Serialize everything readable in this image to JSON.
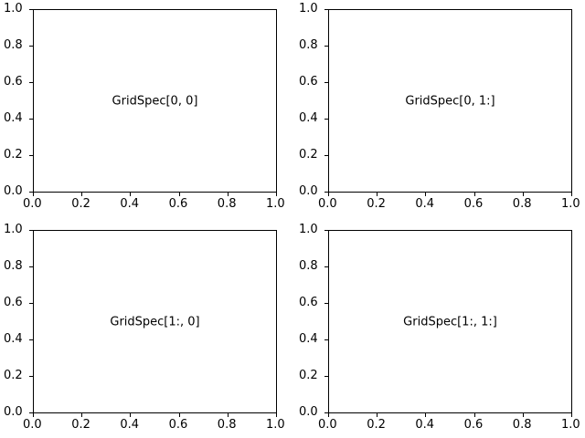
{
  "chart_data": [
    {
      "type": "empty",
      "title": "",
      "annotation": "GridSpec[0, 0]",
      "xlim": [
        0,
        1
      ],
      "ylim": [
        0,
        1
      ],
      "xticks": [
        "0.0",
        "0.2",
        "0.4",
        "0.6",
        "0.8",
        "1.0"
      ],
      "yticks": [
        "0.0",
        "0.2",
        "0.4",
        "0.6",
        "0.8",
        "1.0"
      ],
      "grid": false
    },
    {
      "type": "empty",
      "title": "",
      "annotation": "GridSpec[0, 1:]",
      "xlim": [
        0,
        1
      ],
      "ylim": [
        0,
        1
      ],
      "xticks": [
        "0.0",
        "0.2",
        "0.4",
        "0.6",
        "0.8",
        "1.0"
      ],
      "yticks": [
        "0.0",
        "0.2",
        "0.4",
        "0.6",
        "0.8",
        "1.0"
      ],
      "grid": false
    },
    {
      "type": "empty",
      "title": "",
      "annotation": "GridSpec[1:, 0]",
      "xlim": [
        0,
        1
      ],
      "ylim": [
        0,
        1
      ],
      "xticks": [
        "0.0",
        "0.2",
        "0.4",
        "0.6",
        "0.8",
        "1.0"
      ],
      "yticks": [
        "0.0",
        "0.2",
        "0.4",
        "0.6",
        "0.8",
        "1.0"
      ],
      "grid": false
    },
    {
      "type": "empty",
      "title": "",
      "annotation": "GridSpec[1:, 1:]",
      "xlim": [
        0,
        1
      ],
      "ylim": [
        0,
        1
      ],
      "xticks": [
        "0.0",
        "0.2",
        "0.4",
        "0.6",
        "0.8",
        "1.0"
      ],
      "yticks": [
        "0.0",
        "0.2",
        "0.4",
        "0.6",
        "0.8",
        "1.0"
      ],
      "grid": false
    }
  ]
}
